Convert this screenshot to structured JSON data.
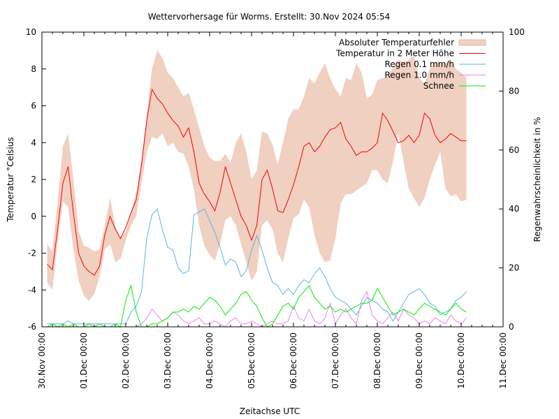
{
  "chart_data": {
    "type": "line",
    "title": "Wettervorhersage für Worms. Erstellt: 30.Nov 2024 05:54",
    "xlabel": "Zeitachse UTC",
    "ylabel": "Temperatur °Celsius",
    "y2label": "Regenwahrscheinlichkeit in %",
    "ylim": [
      -6,
      10
    ],
    "y2lim": [
      0,
      100
    ],
    "yticks": [
      "-6",
      "-4",
      "-2",
      "0",
      "2",
      "4",
      "6",
      "8",
      "10"
    ],
    "y2ticks": [
      "0",
      "20",
      "40",
      "60",
      "80",
      "100"
    ],
    "xlim_hours": [
      0,
      264
    ],
    "xtick_labels": [
      "30.Nov 00:00",
      "01.Dec 00:00",
      "02.Dec 00:00",
      "03.Dec 00:00",
      "04.Dec 00:00",
      "05.Dec 00:00",
      "06.Dec 00:00",
      "07.Dec 00:00",
      "08.Dec 00:00",
      "09.Dec 00:00",
      "10.Dec 00:00",
      "11.Dec 00:00"
    ],
    "grid": false,
    "legend_position": "top-right",
    "x_start_hour": 3,
    "x_step_hours": 3,
    "series": [
      {
        "name": "Absoluter Temperaturfehler",
        "kind": "band",
        "axis": "y",
        "color": "#f0d0c0",
        "upper": [
          -1.5,
          -1.9,
          0.8,
          3.8,
          4.5,
          2.0,
          -0.8,
          -1.6,
          -1.7,
          -1.9,
          -1.8,
          -0.5,
          1.0,
          -0.5,
          -1.2,
          -0.8,
          0.2,
          1.3,
          3.0,
          5.5,
          8.0,
          9.0,
          8.6,
          7.8,
          7.5,
          7.0,
          6.5,
          6.7,
          5.8,
          4.8,
          3.8,
          3.2,
          3.0,
          3.0,
          3.4,
          2.9,
          4.0,
          4.5,
          3.5,
          2.0,
          2.5,
          4.6,
          4.5,
          3.9,
          2.8,
          4.0,
          5.3,
          5.8,
          5.8,
          6.5,
          7.5,
          7.2,
          7.8,
          8.3,
          7.5,
          6.9,
          6.5,
          7.5,
          7.4,
          8.3,
          7.8,
          6.4,
          6.6,
          7.4,
          7.5,
          7.6,
          8.1,
          8.5,
          8.4,
          8.5,
          8.7,
          7.5,
          7.2,
          8.0,
          8.4,
          8.3,
          8.3,
          8.5,
          8.0,
          7.8,
          7.5
        ],
        "lower": [
          -3.6,
          -4.0,
          -1.4,
          0.8,
          0.5,
          -1.8,
          -3.5,
          -4.3,
          -4.6,
          -4.2,
          -3.3,
          -1.8,
          -1.5,
          -2.5,
          -2.3,
          -1.3,
          -0.5,
          0.0,
          1.8,
          3.5,
          4.3,
          4.2,
          4.5,
          3.8,
          4.0,
          3.5,
          3.4,
          2.7,
          1.5,
          -0.5,
          -1.6,
          -2.1,
          -2.4,
          -1.5,
          -0.2,
          0.0,
          -0.5,
          -1.5,
          -2.5,
          -3.5,
          -3.0,
          -0.5,
          -0.2,
          -0.7,
          -2.0,
          -2.5,
          -1.2,
          -0.1,
          0.1,
          0.9,
          0.5,
          -1.0,
          -2.0,
          -2.5,
          -2.4,
          -1.2,
          0.7,
          1.2,
          1.2,
          1.4,
          1.6,
          1.8,
          2.5,
          2.5,
          2.0,
          1.8,
          3.0,
          4.5,
          3.0,
          1.5,
          1.0,
          0.5,
          1.0,
          2.0,
          2.8,
          3.5,
          1.5,
          1.1,
          1.2,
          0.8,
          0.9
        ]
      },
      {
        "name": "Temperatur in 2 Meter Höhe",
        "kind": "line",
        "axis": "y",
        "color": "#ff0000",
        "values": [
          -2.6,
          -2.9,
          -0.7,
          1.8,
          2.7,
          0.2,
          -2.0,
          -2.7,
          -3.0,
          -3.2,
          -2.7,
          -1.0,
          0.0,
          -0.7,
          -1.2,
          -0.6,
          0.2,
          0.9,
          2.8,
          5.2,
          6.9,
          6.4,
          6.1,
          5.6,
          5.2,
          4.9,
          4.3,
          4.8,
          3.5,
          1.8,
          1.2,
          0.8,
          0.3,
          1.3,
          2.7,
          1.8,
          0.9,
          0.0,
          -0.5,
          -1.3,
          -0.5,
          2.0,
          2.5,
          1.5,
          0.3,
          0.2,
          0.9,
          1.7,
          2.7,
          3.8,
          4.0,
          3.5,
          3.8,
          4.3,
          4.7,
          4.8,
          5.1,
          4.2,
          3.8,
          3.3,
          3.5,
          3.5,
          3.7,
          4.0,
          5.6,
          5.2,
          4.6,
          4.0,
          4.1,
          4.4,
          4.0,
          4.4,
          5.6,
          5.3,
          4.4,
          4.0,
          4.2,
          4.5,
          4.3,
          4.1,
          4.1
        ]
      },
      {
        "name": "Regen 0.1 mm/h",
        "kind": "line",
        "axis": "y2",
        "color": "#56b4e9",
        "values": [
          1,
          1,
          1,
          1,
          2,
          1,
          1,
          1,
          1,
          1,
          1,
          1,
          1,
          1,
          1,
          1,
          5,
          7,
          12,
          30,
          38,
          40,
          33,
          27,
          26,
          20,
          18,
          19,
          38,
          39,
          40,
          36,
          32,
          27,
          21,
          23,
          22,
          17,
          19,
          26,
          31,
          26,
          20,
          15,
          14,
          11,
          13,
          11,
          14,
          16,
          15,
          18,
          20,
          17,
          13,
          10,
          9,
          8,
          6,
          4,
          7,
          10,
          9,
          8,
          6,
          5,
          2,
          5,
          8,
          11,
          12,
          13,
          11,
          8,
          7,
          4,
          5,
          6,
          9,
          10,
          12
        ]
      },
      {
        "name": "Regen 1.0 mm/h",
        "kind": "line",
        "axis": "y2",
        "color": "#ee82ee",
        "values": [
          0,
          0,
          0,
          0,
          0,
          0,
          0,
          0,
          0,
          0,
          0,
          0,
          0,
          0,
          0,
          0,
          0,
          0,
          1,
          3,
          6,
          4,
          2,
          3,
          5,
          4,
          2,
          1,
          2,
          3,
          1,
          1,
          2,
          1,
          0,
          2,
          3,
          1,
          1,
          2,
          1,
          0,
          1,
          2,
          1,
          1,
          2,
          7,
          3,
          2,
          6,
          2,
          1,
          3,
          8,
          1,
          4,
          6,
          3,
          1,
          9,
          12,
          4,
          2,
          1,
          3,
          5,
          2,
          6,
          4,
          3,
          1,
          2,
          1,
          3,
          2,
          1,
          4,
          2,
          1,
          3
        ]
      },
      {
        "name": "Schnee",
        "kind": "line",
        "axis": "y2",
        "color": "#00ee00",
        "values": [
          0,
          1,
          0,
          1,
          0,
          1,
          0,
          0,
          1,
          0,
          1,
          0,
          0,
          1,
          0,
          9,
          14,
          5,
          0,
          0,
          1,
          1,
          2,
          3,
          5,
          5,
          6,
          5,
          7,
          6,
          8,
          10,
          9,
          7,
          4,
          6,
          8,
          11,
          12,
          9,
          7,
          3,
          0,
          1,
          4,
          7,
          8,
          6,
          10,
          12,
          14,
          10,
          8,
          6,
          7,
          5,
          6,
          5,
          6,
          7,
          8,
          8,
          9,
          13,
          10,
          7,
          4,
          5,
          6,
          5,
          4,
          6,
          8,
          7,
          6,
          5,
          4,
          6,
          8,
          6,
          5
        ]
      }
    ]
  }
}
